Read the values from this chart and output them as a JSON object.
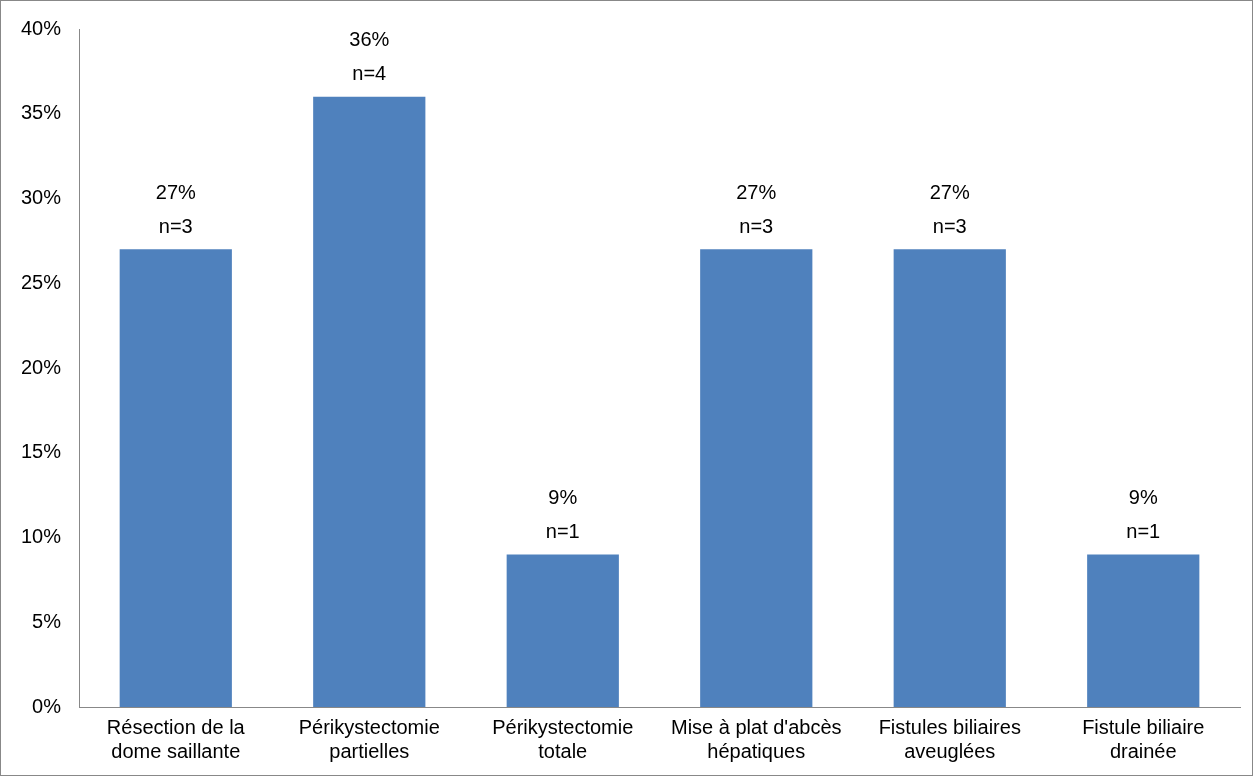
{
  "chart_data": {
    "type": "bar",
    "categories": [
      "Résection de la dome saillante",
      "Périkystectomie partielles",
      "Périkystectomie totale",
      "Mise à plat d'abcès hépatiques",
      "Fistules biliaires aveuglées",
      "Fistule biliaire drainée"
    ],
    "values": [
      27,
      36,
      9,
      27,
      27,
      9
    ],
    "color": "#4f81bd",
    "value_labels": [
      "27%\nn=3",
      "36%\nn=4",
      "9%\nn=1",
      "27%\nn=3",
      "27%\nn=3",
      "9%\nn=1"
    ],
    "ylim": [
      0,
      40
    ],
    "yticks": [
      {
        "value": 0,
        "label": "0%"
      },
      {
        "value": 5,
        "label": "5%"
      },
      {
        "value": 10,
        "label": "10%"
      },
      {
        "value": 15,
        "label": "15%"
      },
      {
        "value": 20,
        "label": "20%"
      },
      {
        "value": 25,
        "label": "25%"
      },
      {
        "value": 30,
        "label": "30%"
      },
      {
        "value": 35,
        "label": "35%"
      },
      {
        "value": 40,
        "label": "40%"
      }
    ],
    "grid": false,
    "legend": false
  }
}
